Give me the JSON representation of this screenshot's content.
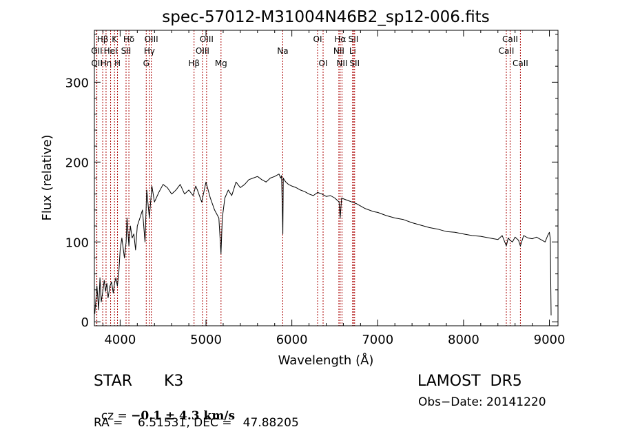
{
  "chart_data": {
    "type": "line",
    "title": "spec-57012-M31004N46B2_sp12-006.fits",
    "xlabel": "Wavelength (Å)",
    "ylabel": "Flux (relative)",
    "xlim": [
      3700,
      9100
    ],
    "ylim": [
      -5,
      365
    ],
    "xticks": [
      4000,
      5000,
      6000,
      7000,
      8000,
      9000
    ],
    "yticks": [
      0,
      100,
      200,
      300
    ],
    "grid": false,
    "line_color": "#000000",
    "marker_color": "#aa0000",
    "series": [
      {
        "x": [
          3705,
          3730,
          3750,
          3765,
          3780,
          3800,
          3815,
          3830,
          3845,
          3860,
          3880,
          3900,
          3920,
          3934,
          3950,
          3968,
          3985,
          4000,
          4020,
          4050,
          4070,
          4080,
          4102,
          4120,
          4140,
          4160,
          4180,
          4200,
          4230,
          4260,
          4290,
          4310,
          4340,
          4370,
          4400,
          4450,
          4500,
          4550,
          4600,
          4650,
          4700,
          4750,
          4800,
          4850,
          4880,
          4900,
          4950,
          5000,
          5050,
          5100,
          5150,
          5175,
          5190,
          5220,
          5260,
          5300,
          5350,
          5400,
          5450,
          5500,
          5550,
          5600,
          5650,
          5700,
          5750,
          5800,
          5850,
          5870,
          5880,
          5895,
          5900,
          5910,
          5930,
          5960,
          6000,
          6050,
          6100,
          6150,
          6200,
          6250,
          6300,
          6350,
          6400,
          6450,
          6500,
          6550,
          6563,
          6580,
          6600,
          6650,
          6700,
          6750,
          6800,
          6850,
          6900,
          6950,
          7000,
          7100,
          7200,
          7300,
          7400,
          7500,
          7600,
          7700,
          7800,
          7900,
          8000,
          8100,
          8200,
          8300,
          8400,
          8450,
          8498,
          8520,
          8542,
          8570,
          8600,
          8640,
          8662,
          8700,
          8750,
          8800,
          8850,
          8900,
          8950,
          8980,
          9000,
          9010,
          9020
        ],
        "y": [
          10,
          45,
          15,
          55,
          25,
          40,
          52,
          38,
          48,
          30,
          44,
          50,
          36,
          48,
          55,
          45,
          62,
          90,
          105,
          80,
          100,
          130,
          95,
          120,
          105,
          110,
          90,
          120,
          130,
          140,
          100,
          165,
          130,
          170,
          150,
          162,
          172,
          168,
          160,
          165,
          172,
          160,
          165,
          158,
          170,
          165,
          150,
          175,
          155,
          140,
          130,
          85,
          130,
          155,
          165,
          158,
          175,
          168,
          172,
          178,
          180,
          182,
          178,
          175,
          180,
          182,
          185,
          180,
          183,
          110,
          180,
          178,
          175,
          172,
          170,
          168,
          165,
          163,
          160,
          158,
          162,
          160,
          157,
          158,
          155,
          150,
          130,
          155,
          154,
          152,
          150,
          148,
          145,
          142,
          140,
          138,
          137,
          133,
          130,
          128,
          124,
          121,
          118,
          116,
          113,
          112,
          110,
          108,
          107,
          105,
          103,
          108,
          95,
          105,
          102,
          100,
          106,
          102,
          95,
          108,
          105,
          104,
          106,
          103,
          100,
          108,
          112,
          104,
          8
        ]
      }
    ],
    "line_markers": [
      {
        "label": "Hβ",
        "x": 3797,
        "row": 1
      },
      {
        "label": "OII",
        "x": 3727,
        "row": 2
      },
      {
        "label": "OII",
        "x": 3729,
        "row": 3
      },
      {
        "label": "Hη",
        "x": 3836,
        "row": 3
      },
      {
        "label": "HeI",
        "x": 3889,
        "row": 2
      },
      {
        "label": "K",
        "x": 3934,
        "row": 1
      },
      {
        "label": "H",
        "x": 3969,
        "row": 3
      },
      {
        "label": "SII",
        "x": 4069,
        "row": 2
      },
      {
        "label": "Hδ",
        "x": 4102,
        "row": 1
      },
      {
        "label": "G",
        "x": 4304,
        "row": 3
      },
      {
        "label": "Hγ",
        "x": 4341,
        "row": 2
      },
      {
        "label": "OIII",
        "x": 4363,
        "row": 1
      },
      {
        "label": "Hβ",
        "x": 4861,
        "row": 3
      },
      {
        "label": "OIII",
        "x": 4959,
        "row": 2
      },
      {
        "label": "OIII",
        "x": 5007,
        "row": 1
      },
      {
        "label": "Mg",
        "x": 5175,
        "row": 3
      },
      {
        "label": "Na",
        "x": 5894,
        "row": 2
      },
      {
        "label": "OI",
        "x": 6300,
        "row": 1
      },
      {
        "label": "OI",
        "x": 6364,
        "row": 3
      },
      {
        "label": "NII",
        "x": 6548,
        "row": 2
      },
      {
        "label": "Hα",
        "x": 6563,
        "row": 1
      },
      {
        "label": "NII",
        "x": 6584,
        "row": 3
      },
      {
        "label": "Li",
        "x": 6708,
        "row": 2
      },
      {
        "label": "SII",
        "x": 6717,
        "row": 1
      },
      {
        "label": "SII",
        "x": 6731,
        "row": 3
      },
      {
        "label": "CaII",
        "x": 8498,
        "row": 2
      },
      {
        "label": "CaII",
        "x": 8542,
        "row": 1
      },
      {
        "label": "CaII",
        "x": 8662,
        "row": 3
      }
    ]
  },
  "info": {
    "class_label": "STAR",
    "subclass": "K3",
    "survey": "LAMOST  DR5",
    "cz_prefix": "cz = ",
    "cz_value": "−0.1 ± 4.3 km/s",
    "obs_date": "Obs−Date: 20141220",
    "coords": "RA =    6.51531, DEC =   47.88205"
  }
}
